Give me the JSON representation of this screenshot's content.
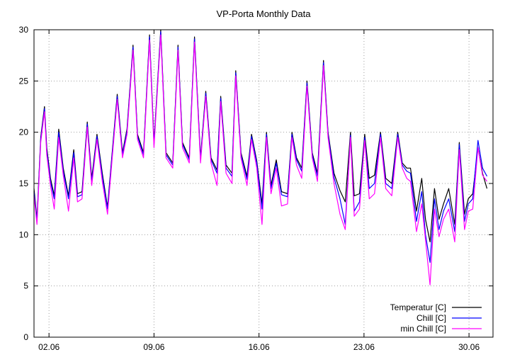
{
  "chart_data": {
    "type": "line",
    "title": "VP-Porta Monthly Data",
    "xlabel": "",
    "ylabel": "",
    "ylim": [
      0,
      30
    ],
    "yticks": [
      0,
      5,
      10,
      15,
      20,
      25,
      30
    ],
    "xlim": [
      0.0,
      30.6
    ],
    "xticks": [
      {
        "value": 1.0,
        "label": "02.06"
      },
      {
        "value": 8.0,
        "label": "09.06"
      },
      {
        "value": 15.0,
        "label": "16.06"
      },
      {
        "value": 22.0,
        "label": "23.06"
      },
      {
        "value": 29.0,
        "label": "30.06"
      }
    ],
    "grid": true,
    "legend_position": "bottom-right",
    "x_unit": "days since 01.06 00:00",
    "series": [
      {
        "name": "Temperatur [C]",
        "color": "#000000",
        "points": [
          [
            0.0,
            14.5
          ],
          [
            0.2,
            11.5
          ],
          [
            0.45,
            19.5
          ],
          [
            0.7,
            22.5
          ],
          [
            0.85,
            18.5
          ],
          [
            1.1,
            15.5
          ],
          [
            1.35,
            13.8
          ],
          [
            1.65,
            20.3
          ],
          [
            1.95,
            16.5
          ],
          [
            2.3,
            13.8
          ],
          [
            2.65,
            18.3
          ],
          [
            2.9,
            14.0
          ],
          [
            3.2,
            14.2
          ],
          [
            3.55,
            21.0
          ],
          [
            3.85,
            15.5
          ],
          [
            4.2,
            19.8
          ],
          [
            4.55,
            16.0
          ],
          [
            4.9,
            12.7
          ],
          [
            5.2,
            17.8
          ],
          [
            5.55,
            23.7
          ],
          [
            5.9,
            18.0
          ],
          [
            6.2,
            20.3
          ],
          [
            6.6,
            28.5
          ],
          [
            6.9,
            19.8
          ],
          [
            7.3,
            18.0
          ],
          [
            7.7,
            29.5
          ],
          [
            8.0,
            19.0
          ],
          [
            8.45,
            30.0
          ],
          [
            8.8,
            18.0
          ],
          [
            9.25,
            17.0
          ],
          [
            9.6,
            28.5
          ],
          [
            9.9,
            19.0
          ],
          [
            10.35,
            17.5
          ],
          [
            10.7,
            29.3
          ],
          [
            11.1,
            17.5
          ],
          [
            11.45,
            24.0
          ],
          [
            11.8,
            17.5
          ],
          [
            12.2,
            16.3
          ],
          [
            12.45,
            23.5
          ],
          [
            12.8,
            16.8
          ],
          [
            13.2,
            16.0
          ],
          [
            13.45,
            26.0
          ],
          [
            13.8,
            18.0
          ],
          [
            14.2,
            15.7
          ],
          [
            14.5,
            19.8
          ],
          [
            14.85,
            17.2
          ],
          [
            15.2,
            13.0
          ],
          [
            15.5,
            20.0
          ],
          [
            15.8,
            14.8
          ],
          [
            16.15,
            17.3
          ],
          [
            16.5,
            14.2
          ],
          [
            16.9,
            14.0
          ],
          [
            17.2,
            20.0
          ],
          [
            17.5,
            17.5
          ],
          [
            17.85,
            16.5
          ],
          [
            18.2,
            25.0
          ],
          [
            18.55,
            18.0
          ],
          [
            18.9,
            16.0
          ],
          [
            19.3,
            27.0
          ],
          [
            19.6,
            20.0
          ],
          [
            20.0,
            16.0
          ],
          [
            20.4,
            14.3
          ],
          [
            20.75,
            13.2
          ],
          [
            21.1,
            20.0
          ],
          [
            21.35,
            13.8
          ],
          [
            21.7,
            14.0
          ],
          [
            22.05,
            19.8
          ],
          [
            22.35,
            15.5
          ],
          [
            22.7,
            15.8
          ],
          [
            23.1,
            20.0
          ],
          [
            23.45,
            15.5
          ],
          [
            23.85,
            15.0
          ],
          [
            24.25,
            20.0
          ],
          [
            24.55,
            17.0
          ],
          [
            24.85,
            16.5
          ],
          [
            25.1,
            16.5
          ],
          [
            25.5,
            12.3
          ],
          [
            25.85,
            15.5
          ],
          [
            26.1,
            11.5
          ],
          [
            26.4,
            9.3
          ],
          [
            26.7,
            14.5
          ],
          [
            27.0,
            11.5
          ],
          [
            27.3,
            13.0
          ],
          [
            27.65,
            14.5
          ],
          [
            28.05,
            11.0
          ],
          [
            28.35,
            19.0
          ],
          [
            28.7,
            12.0
          ],
          [
            28.95,
            13.5
          ],
          [
            29.25,
            14.0
          ],
          [
            29.6,
            18.5
          ],
          [
            29.9,
            16.0
          ],
          [
            30.2,
            14.5
          ]
        ]
      },
      {
        "name": "Chill [C]",
        "color": "#0000ff",
        "points": [
          [
            0.0,
            14.2
          ],
          [
            0.2,
            11.3
          ],
          [
            0.45,
            19.3
          ],
          [
            0.7,
            22.3
          ],
          [
            0.85,
            18.2
          ],
          [
            1.1,
            15.2
          ],
          [
            1.35,
            13.5
          ],
          [
            1.65,
            20.0
          ],
          [
            1.95,
            16.2
          ],
          [
            2.3,
            13.5
          ],
          [
            2.65,
            18.0
          ],
          [
            2.9,
            13.7
          ],
          [
            3.2,
            13.9
          ],
          [
            3.55,
            20.8
          ],
          [
            3.85,
            15.2
          ],
          [
            4.2,
            19.6
          ],
          [
            4.55,
            15.7
          ],
          [
            4.9,
            12.5
          ],
          [
            5.2,
            17.6
          ],
          [
            5.55,
            23.5
          ],
          [
            5.9,
            17.8
          ],
          [
            6.2,
            20.1
          ],
          [
            6.6,
            28.3
          ],
          [
            6.9,
            19.6
          ],
          [
            7.3,
            17.8
          ],
          [
            7.7,
            29.3
          ],
          [
            8.0,
            18.8
          ],
          [
            8.45,
            29.8
          ],
          [
            8.8,
            17.8
          ],
          [
            9.25,
            16.8
          ],
          [
            9.6,
            28.3
          ],
          [
            9.9,
            18.8
          ],
          [
            10.35,
            17.3
          ],
          [
            10.7,
            29.1
          ],
          [
            11.1,
            17.3
          ],
          [
            11.45,
            23.8
          ],
          [
            11.8,
            17.3
          ],
          [
            12.2,
            16.0
          ],
          [
            12.45,
            23.3
          ],
          [
            12.8,
            16.5
          ],
          [
            13.2,
            15.7
          ],
          [
            13.45,
            25.8
          ],
          [
            13.8,
            17.8
          ],
          [
            14.2,
            15.4
          ],
          [
            14.5,
            19.6
          ],
          [
            14.85,
            17.0
          ],
          [
            15.2,
            12.5
          ],
          [
            15.5,
            19.8
          ],
          [
            15.8,
            14.5
          ],
          [
            16.15,
            17.0
          ],
          [
            16.5,
            13.9
          ],
          [
            16.9,
            13.7
          ],
          [
            17.2,
            19.8
          ],
          [
            17.5,
            17.3
          ],
          [
            17.85,
            16.2
          ],
          [
            18.2,
            24.8
          ],
          [
            18.55,
            17.8
          ],
          [
            18.9,
            15.7
          ],
          [
            19.3,
            26.8
          ],
          [
            19.6,
            19.8
          ],
          [
            20.0,
            15.6
          ],
          [
            20.4,
            13.5
          ],
          [
            20.75,
            11.0
          ],
          [
            21.1,
            19.7
          ],
          [
            21.35,
            12.3
          ],
          [
            21.7,
            13.2
          ],
          [
            22.05,
            19.5
          ],
          [
            22.35,
            14.5
          ],
          [
            22.7,
            15.0
          ],
          [
            23.1,
            19.8
          ],
          [
            23.45,
            15.0
          ],
          [
            23.85,
            14.5
          ],
          [
            24.25,
            19.8
          ],
          [
            24.55,
            16.8
          ],
          [
            24.85,
            16.2
          ],
          [
            25.1,
            16.0
          ],
          [
            25.5,
            11.3
          ],
          [
            25.85,
            14.2
          ],
          [
            26.1,
            10.0
          ],
          [
            26.4,
            7.3
          ],
          [
            26.7,
            13.5
          ],
          [
            27.0,
            10.5
          ],
          [
            27.3,
            12.3
          ],
          [
            27.65,
            13.5
          ],
          [
            28.05,
            10.3
          ],
          [
            28.35,
            18.8
          ],
          [
            28.7,
            11.3
          ],
          [
            28.95,
            13.0
          ],
          [
            29.25,
            13.5
          ],
          [
            29.6,
            19.2
          ],
          [
            29.9,
            16.5
          ],
          [
            30.2,
            15.7
          ]
        ]
      },
      {
        "name": "min Chill [C]",
        "color": "#ff00ff",
        "points": [
          [
            0.0,
            13.8
          ],
          [
            0.2,
            11.0
          ],
          [
            0.45,
            19.0
          ],
          [
            0.7,
            22.0
          ],
          [
            0.85,
            17.8
          ],
          [
            1.1,
            14.8
          ],
          [
            1.35,
            12.5
          ],
          [
            1.65,
            19.5
          ],
          [
            1.95,
            15.8
          ],
          [
            2.3,
            12.3
          ],
          [
            2.65,
            17.5
          ],
          [
            2.9,
            13.2
          ],
          [
            3.2,
            13.5
          ],
          [
            3.55,
            20.5
          ],
          [
            3.85,
            14.8
          ],
          [
            4.2,
            19.3
          ],
          [
            4.55,
            15.2
          ],
          [
            4.9,
            12.0
          ],
          [
            5.2,
            17.2
          ],
          [
            5.55,
            23.2
          ],
          [
            5.9,
            17.5
          ],
          [
            6.2,
            19.8
          ],
          [
            6.6,
            28.0
          ],
          [
            6.9,
            19.3
          ],
          [
            7.3,
            17.5
          ],
          [
            7.7,
            29.0
          ],
          [
            8.0,
            18.5
          ],
          [
            8.45,
            29.5
          ],
          [
            8.8,
            17.5
          ],
          [
            9.25,
            16.5
          ],
          [
            9.6,
            28.0
          ],
          [
            9.9,
            18.5
          ],
          [
            10.35,
            17.0
          ],
          [
            10.7,
            28.8
          ],
          [
            11.1,
            17.0
          ],
          [
            11.45,
            23.5
          ],
          [
            11.8,
            17.0
          ],
          [
            12.2,
            14.8
          ],
          [
            12.45,
            23.0
          ],
          [
            12.8,
            16.0
          ],
          [
            13.2,
            15.0
          ],
          [
            13.45,
            25.5
          ],
          [
            13.8,
            17.5
          ],
          [
            14.2,
            14.8
          ],
          [
            14.5,
            19.3
          ],
          [
            14.85,
            16.5
          ],
          [
            15.2,
            11.0
          ],
          [
            15.5,
            19.5
          ],
          [
            15.8,
            14.0
          ],
          [
            16.15,
            16.5
          ],
          [
            16.5,
            12.8
          ],
          [
            16.9,
            13.0
          ],
          [
            17.2,
            19.5
          ],
          [
            17.5,
            16.8
          ],
          [
            17.85,
            15.5
          ],
          [
            18.2,
            24.5
          ],
          [
            18.55,
            17.5
          ],
          [
            18.9,
            15.2
          ],
          [
            19.3,
            26.5
          ],
          [
            19.6,
            19.5
          ],
          [
            20.0,
            15.0
          ],
          [
            20.4,
            12.0
          ],
          [
            20.75,
            10.5
          ],
          [
            21.1,
            19.5
          ],
          [
            21.35,
            11.8
          ],
          [
            21.7,
            12.5
          ],
          [
            22.05,
            19.2
          ],
          [
            22.35,
            13.5
          ],
          [
            22.7,
            14.0
          ],
          [
            23.1,
            19.5
          ],
          [
            23.45,
            14.5
          ],
          [
            23.85,
            13.8
          ],
          [
            24.25,
            19.5
          ],
          [
            24.55,
            16.5
          ],
          [
            24.85,
            15.5
          ],
          [
            25.1,
            15.2
          ],
          [
            25.5,
            10.3
          ],
          [
            25.85,
            13.0
          ],
          [
            26.1,
            9.5
          ],
          [
            26.4,
            5.1
          ],
          [
            26.7,
            12.5
          ],
          [
            27.0,
            9.8
          ],
          [
            27.3,
            11.5
          ],
          [
            27.65,
            12.5
          ],
          [
            28.05,
            9.3
          ],
          [
            28.35,
            18.3
          ],
          [
            28.7,
            10.5
          ],
          [
            28.95,
            12.3
          ],
          [
            29.25,
            12.5
          ],
          [
            29.6,
            18.5
          ],
          [
            29.9,
            15.8
          ],
          [
            30.2,
            15.2
          ]
        ]
      }
    ]
  }
}
